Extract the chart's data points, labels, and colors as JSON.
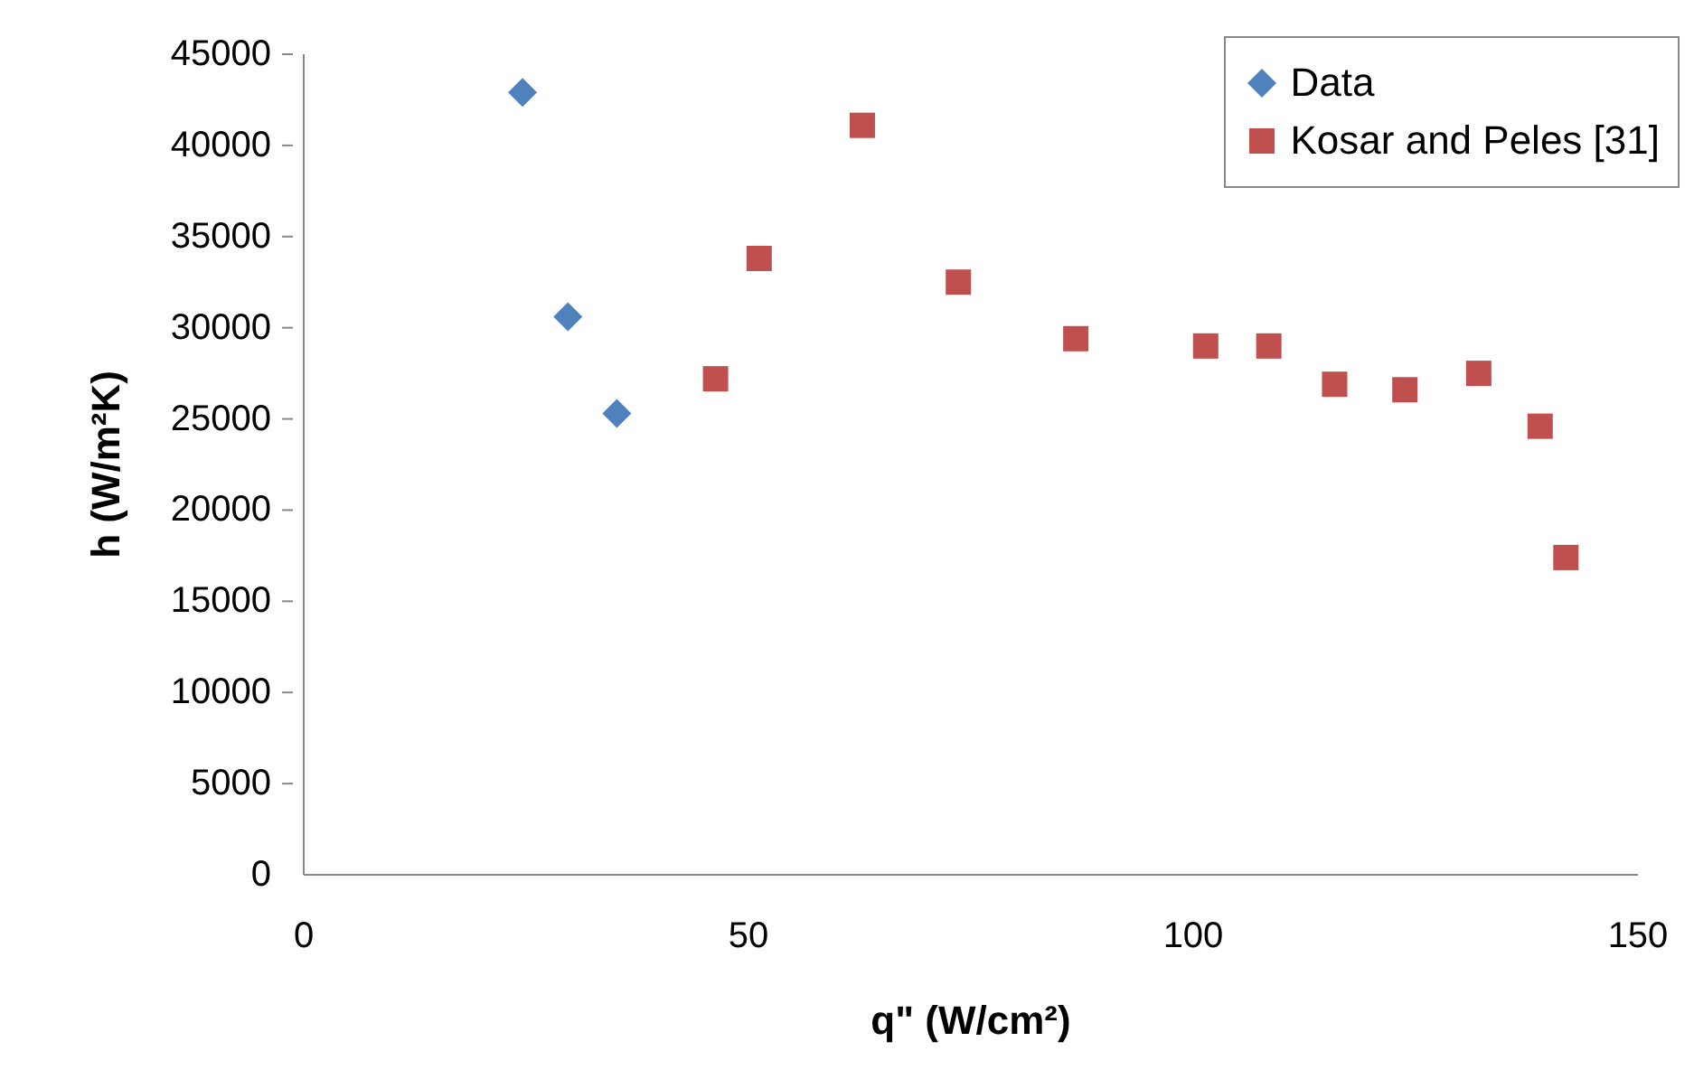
{
  "chart_data": {
    "type": "scatter",
    "xlabel": "q\" (W/cm²)",
    "ylabel": "h (W/m²K)",
    "xlim": [
      0,
      150
    ],
    "xticks": [
      0,
      50,
      100,
      150
    ],
    "ylim": [
      0,
      45000
    ],
    "yticks": [
      0,
      5000,
      10000,
      15000,
      20000,
      25000,
      30000,
      35000,
      40000,
      45000
    ],
    "grid": false,
    "legend": "top right",
    "series": [
      {
        "name": "Data",
        "color": "#4f81bd",
        "marker": "diamond",
        "x": [
          24.6,
          29.7,
          35.2
        ],
        "values": [
          42900,
          30600,
          25300
        ]
      },
      {
        "name": "Kosar and Peles [31]",
        "color": "#c0504d",
        "marker": "square",
        "x": [
          46.3,
          51.2,
          62.8,
          73.6,
          86.8,
          101.4,
          108.5,
          115.9,
          123.8,
          132.1,
          139.0,
          141.9
        ],
        "values": [
          27200,
          33800,
          41100,
          32500,
          29400,
          29000,
          29000,
          26900,
          26600,
          27500,
          24600,
          17400
        ]
      }
    ]
  }
}
